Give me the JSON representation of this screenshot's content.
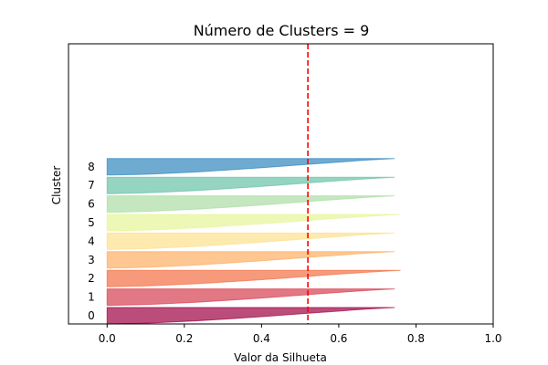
{
  "chart_data": {
    "type": "silhouette",
    "title": "Número de Clusters = 9",
    "xlabel": "Valor da Silhueta",
    "ylabel": "Cluster",
    "xlim": [
      -0.1,
      1.0
    ],
    "xticks": [
      "0.0",
      "0.2",
      "0.4",
      "0.6",
      "0.8",
      "1.0"
    ],
    "xtick_values": [
      0.0,
      0.2,
      0.4,
      0.6,
      0.8,
      1.0
    ],
    "average_silhouette": 0.52,
    "average_line_color": "#ff0000",
    "clusters": [
      {
        "label": "0",
        "min": 0.0,
        "max": 0.745,
        "color": "#9e0142"
      },
      {
        "label": "1",
        "min": 0.0,
        "max": 0.745,
        "color": "#d53e4f"
      },
      {
        "label": "2",
        "min": 0.0,
        "max": 0.76,
        "color": "#f46d43"
      },
      {
        "label": "3",
        "min": 0.0,
        "max": 0.745,
        "color": "#fdae61"
      },
      {
        "label": "4",
        "min": 0.0,
        "max": 0.745,
        "color": "#fee08b"
      },
      {
        "label": "5",
        "min": 0.0,
        "max": 0.76,
        "color": "#e6f598"
      },
      {
        "label": "6",
        "min": 0.0,
        "max": 0.745,
        "color": "#abdda4"
      },
      {
        "label": "7",
        "min": 0.0,
        "max": 0.745,
        "color": "#66c2a5"
      },
      {
        "label": "8",
        "min": 0.0,
        "max": 0.745,
        "color": "#3288bd"
      }
    ],
    "grid": false
  }
}
